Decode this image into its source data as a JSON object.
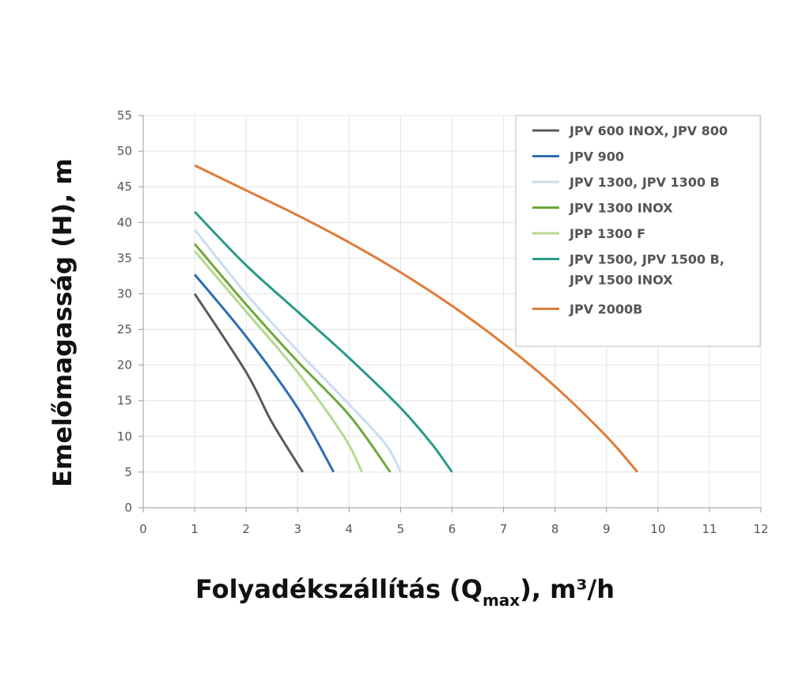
{
  "chart_data": {
    "type": "line",
    "xlabel": "Folyadékszállítás (Q",
    "xlabel_sub": "max",
    "xlabel_end": "), m³/h",
    "ylabel": "Emelőmagasság (H), m",
    "xlim": [
      0,
      12
    ],
    "ylim": [
      0,
      55
    ],
    "xticks": [
      0,
      1,
      2,
      3,
      4,
      5,
      6,
      7,
      8,
      9,
      10,
      11,
      12
    ],
    "yticks": [
      0,
      5,
      10,
      15,
      20,
      25,
      30,
      35,
      40,
      45,
      50,
      55
    ],
    "grid": true,
    "legend_position": "top-right",
    "series": [
      {
        "name": "JPV 600 INOX, JPV 800",
        "color": "#5a5a5a",
        "points": [
          [
            1,
            30
          ],
          [
            2,
            19
          ],
          [
            2.5,
            12
          ],
          [
            3.1,
            5
          ]
        ]
      },
      {
        "name": "JPV 900",
        "color": "#2e6db4",
        "points": [
          [
            1,
            32.7
          ],
          [
            2,
            24
          ],
          [
            3,
            14
          ],
          [
            3.7,
            5
          ]
        ]
      },
      {
        "name": "JPV 1300, JPV 1300 B",
        "color": "#c9ddef",
        "points": [
          [
            1,
            39
          ],
          [
            2,
            30
          ],
          [
            3,
            22
          ],
          [
            4,
            14.5
          ],
          [
            4.7,
            9
          ],
          [
            5,
            5
          ]
        ]
      },
      {
        "name": "JPV 1300 INOX",
        "color": "#6ea83c",
        "points": [
          [
            1,
            37
          ],
          [
            2,
            28.5
          ],
          [
            3,
            20.5
          ],
          [
            4,
            13
          ],
          [
            4.8,
            5
          ]
        ]
      },
      {
        "name": "JPP 1300 F",
        "color": "#b3d98f",
        "points": [
          [
            1,
            36
          ],
          [
            2,
            27.5
          ],
          [
            3,
            19
          ],
          [
            3.9,
            10
          ],
          [
            4.25,
            5
          ]
        ]
      },
      {
        "name": "JPV 1500, JPV 1500 B,",
        "name_line2": "JPV 1500 INOX",
        "color": "#2a9a8a",
        "points": [
          [
            1,
            41.5
          ],
          [
            2,
            34
          ],
          [
            3,
            27.5
          ],
          [
            4,
            21
          ],
          [
            5,
            14
          ],
          [
            5.6,
            9
          ],
          [
            6,
            5
          ]
        ]
      },
      {
        "name": "JPV 2000B",
        "color": "#e07b39",
        "points": [
          [
            1,
            48
          ],
          [
            2,
            44.5
          ],
          [
            3,
            41
          ],
          [
            4,
            37.2
          ],
          [
            5,
            33
          ],
          [
            6,
            28.3
          ],
          [
            7,
            23
          ],
          [
            8,
            17
          ],
          [
            9,
            10
          ],
          [
            9.6,
            5
          ]
        ]
      }
    ]
  }
}
